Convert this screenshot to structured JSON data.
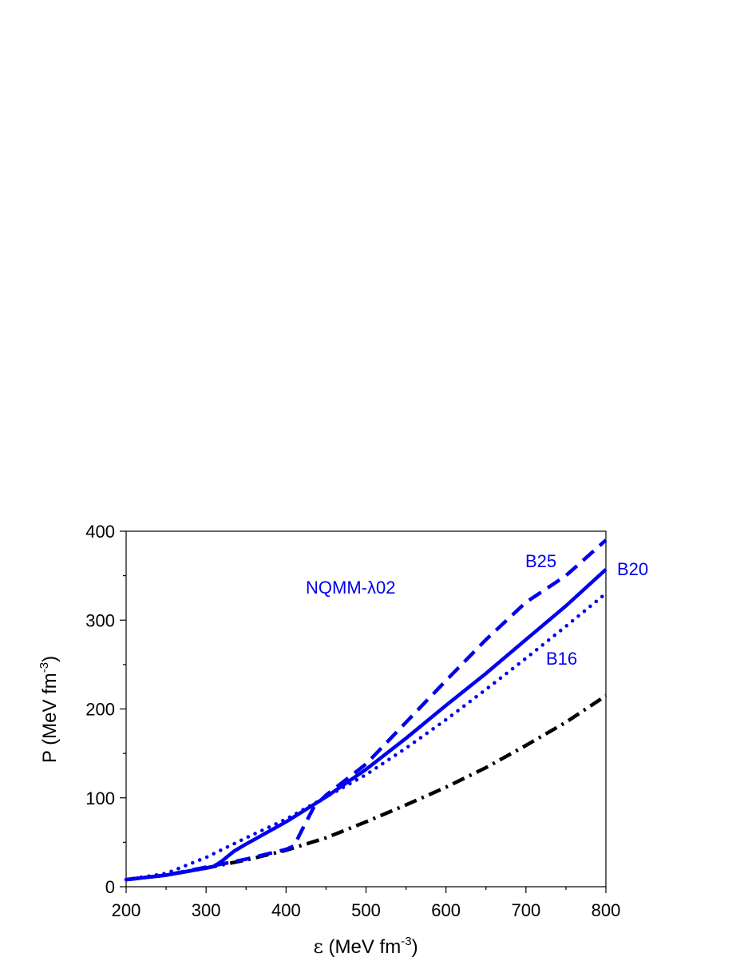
{
  "chart_data": {
    "type": "line",
    "title": "",
    "annotation": "NQMM-λ02",
    "xlabel": {
      "symbol": "ε",
      "text": " (MeV fm",
      "sup": "-3",
      "close": ")"
    },
    "ylabel": {
      "symbol": "P",
      "text": " (MeV fm",
      "sup": "-3",
      "close": ")"
    },
    "xlim": [
      200,
      800
    ],
    "ylim": [
      0,
      400
    ],
    "xticks": [
      200,
      300,
      400,
      500,
      600,
      700,
      800
    ],
    "yticks": [
      0,
      100,
      200,
      300,
      400
    ],
    "xtick_labels": [
      "200",
      "300",
      "400",
      "500",
      "600",
      "700",
      "800"
    ],
    "ytick_labels": [
      "0",
      "100",
      "200",
      "300",
      "400"
    ],
    "grid": false,
    "colors": {
      "quark": "#0000ee",
      "hadronic": "#000000"
    },
    "series": [
      {
        "name": "B25",
        "style": "dashed",
        "color": "#0000ee",
        "x": [
          200,
          250,
          300,
          350,
          400,
          410,
          420,
          435,
          450,
          500,
          550,
          600,
          650,
          700,
          750,
          800
        ],
        "y": [
          8,
          13,
          22,
          31,
          42,
          46,
          64,
          90,
          103,
          138,
          185,
          232,
          278,
          320,
          350,
          390
        ]
      },
      {
        "name": "B20",
        "style": "solid",
        "color": "#0000ee",
        "x": [
          200,
          250,
          300,
          310,
          320,
          335,
          350,
          400,
          450,
          500,
          550,
          600,
          650,
          700,
          750,
          800
        ],
        "y": [
          8,
          13,
          21,
          23,
          29,
          40,
          48,
          73,
          101,
          132,
          167,
          204,
          240,
          278,
          316,
          357
        ]
      },
      {
        "name": "B16",
        "style": "dotted",
        "color": "#0000ee",
        "x": [
          200,
          250,
          300,
          350,
          400,
          450,
          500,
          550,
          600,
          650,
          700,
          750,
          800
        ],
        "y": [
          8,
          15,
          33,
          55,
          76,
          101,
          126,
          156,
          188,
          222,
          257,
          293,
          330
        ]
      },
      {
        "style": "dashdot",
        "color": "#000000",
        "x": [
          200,
          250,
          300,
          350,
          400,
          450,
          500,
          550,
          600,
          650,
          700,
          750,
          800
        ],
        "y": [
          8,
          13,
          21,
          30,
          41,
          55,
          73,
          92,
          112,
          134,
          159,
          185,
          215
        ]
      }
    ]
  }
}
